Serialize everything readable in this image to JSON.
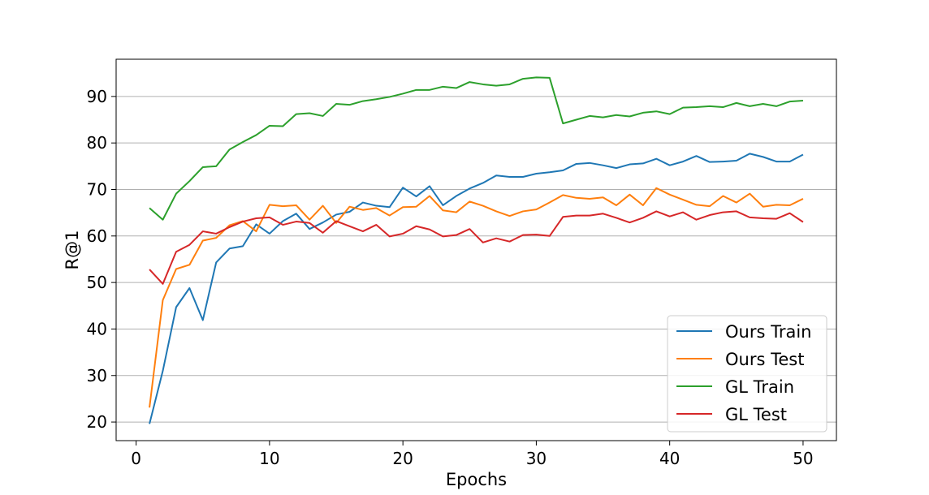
{
  "chart_data": {
    "type": "line",
    "title": "",
    "xlabel": "Epochs",
    "ylabel": "R@1",
    "xlim": [
      -1.5,
      52.5
    ],
    "ylim": [
      16,
      98
    ],
    "xticks": [
      0,
      10,
      20,
      30,
      40,
      50
    ],
    "yticks": [
      20,
      30,
      40,
      50,
      60,
      70,
      80,
      90
    ],
    "grid": "horizontal",
    "legend_position": "bottom-right",
    "x": [
      1,
      2,
      3,
      4,
      5,
      6,
      7,
      8,
      9,
      10,
      11,
      12,
      13,
      14,
      15,
      16,
      17,
      18,
      19,
      20,
      21,
      22,
      23,
      24,
      25,
      26,
      27,
      28,
      29,
      30,
      31,
      32,
      33,
      34,
      35,
      36,
      37,
      38,
      39,
      40,
      41,
      42,
      43,
      44,
      45,
      46,
      47,
      48,
      49,
      50
    ],
    "series": [
      {
        "name": "Ours Train",
        "color": "#1f77b4",
        "values": [
          19.6,
          31,
          44.7,
          48.8,
          41.9,
          54.3,
          57.3,
          57.8,
          62.5,
          60.5,
          63.2,
          64.8,
          61.5,
          62.9,
          64.6,
          65.2,
          67.2,
          66.5,
          66.2,
          70.4,
          68.5,
          70.7,
          66.6,
          68.6,
          70.2,
          71.4,
          73,
          72.7,
          72.7,
          73.4,
          73.7,
          74.1,
          75.5,
          75.7,
          75.2,
          74.6,
          75.4,
          75.6,
          76.6,
          75.2,
          76,
          77.2,
          75.9,
          76,
          76.2,
          77.7,
          77,
          76,
          76,
          77.5
        ]
      },
      {
        "name": "Ours Test",
        "color": "#ff7f0e",
        "values": [
          23.1,
          46.2,
          52.9,
          53.8,
          59,
          59.6,
          62.3,
          63.2,
          61,
          66.7,
          66.4,
          66.6,
          63.5,
          66.5,
          62.8,
          66.3,
          65.6,
          66,
          64.4,
          66.2,
          66.3,
          68.6,
          65.5,
          65.1,
          67.4,
          66.5,
          65.3,
          64.3,
          65.3,
          65.7,
          67.2,
          68.8,
          68.2,
          68,
          68.3,
          66.6,
          68.9,
          66.6,
          70.3,
          68.9,
          67.8,
          66.7,
          66.4,
          68.6,
          67.2,
          69.1,
          66.3,
          66.7,
          66.6,
          68
        ]
      },
      {
        "name": "GL Train",
        "color": "#2ca02c",
        "values": [
          66,
          63.5,
          69.1,
          71.8,
          74.8,
          75,
          78.6,
          80.2,
          81.7,
          83.7,
          83.6,
          86.2,
          86.4,
          85.8,
          88.4,
          88.2,
          89,
          89.4,
          89.9,
          90.6,
          91.4,
          91.4,
          92.1,
          91.8,
          93.1,
          92.6,
          92.3,
          92.6,
          93.8,
          94.1,
          94,
          84.2,
          85,
          85.8,
          85.5,
          86,
          85.7,
          86.5,
          86.8,
          86.2,
          87.6,
          87.7,
          87.9,
          87.7,
          88.6,
          87.9,
          88.4,
          87.9,
          88.9,
          89.1
        ]
      },
      {
        "name": "GL Test",
        "color": "#d62728",
        "values": [
          52.8,
          49.7,
          56.6,
          58.1,
          61,
          60.5,
          61.9,
          63.1,
          63.8,
          64,
          62.4,
          63.1,
          62.8,
          60.7,
          63.2,
          62.1,
          61,
          62.4,
          59.9,
          60.5,
          62.1,
          61.4,
          59.9,
          60.2,
          61.5,
          58.6,
          59.5,
          58.8,
          60.2,
          60.3,
          60,
          64.1,
          64.4,
          64.4,
          64.8,
          63.9,
          62.9,
          63.9,
          65.3,
          64.2,
          65.1,
          63.5,
          64.5,
          65.1,
          65.3,
          64,
          63.8,
          63.7,
          64.9,
          63
        ]
      }
    ]
  }
}
